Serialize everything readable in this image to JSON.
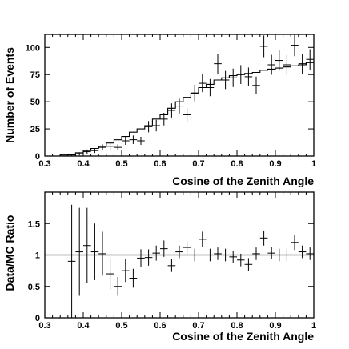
{
  "chart_data": [
    {
      "type": "scatter",
      "xlabel": "Cosine of the Zenith Angle",
      "ylabel": "Number of Events",
      "xlim": [
        0.3,
        1.0
      ],
      "ylim": [
        0,
        112
      ],
      "xticks": [
        "0.3",
        "0.4",
        "0.5",
        "0.6",
        "0.7",
        "0.8",
        "0.9",
        "1"
      ],
      "yticks": [
        "0",
        "25",
        "50",
        "75",
        "100"
      ],
      "ytick_values": [
        0,
        25,
        50,
        75,
        100
      ],
      "bin_width": 0.02,
      "x": [
        0.33,
        0.35,
        0.37,
        0.39,
        0.41,
        0.43,
        0.45,
        0.47,
        0.49,
        0.51,
        0.53,
        0.55,
        0.57,
        0.59,
        0.61,
        0.63,
        0.65,
        0.67,
        0.69,
        0.71,
        0.73,
        0.75,
        0.77,
        0.79,
        0.81,
        0.83,
        0.85,
        0.87,
        0.89,
        0.91,
        0.93,
        0.95,
        0.97,
        0.99
      ],
      "data_values": [
        0,
        0,
        1,
        2,
        4,
        5,
        8,
        9,
        8,
        14,
        15,
        14,
        27,
        28,
        34,
        42,
        46,
        38,
        58,
        67,
        63,
        85,
        70,
        72,
        75,
        73,
        65,
        101,
        84,
        88,
        84,
        102,
        85,
        89
      ],
      "data_errors": [
        0,
        0,
        1,
        1.4,
        2,
        2.2,
        2.8,
        3,
        2.8,
        3.7,
        3.9,
        3.7,
        5.2,
        5.3,
        5.8,
        6.5,
        6.8,
        6.2,
        7.6,
        8.2,
        7.9,
        9.2,
        8.4,
        8.5,
        8.7,
        8.5,
        8.1,
        10,
        9.2,
        9.4,
        9.2,
        10.1,
        9.2,
        9.4
      ],
      "mc_values": [
        0,
        1,
        1.5,
        3,
        5,
        7,
        9,
        12,
        15,
        18,
        22,
        25,
        28,
        34,
        38,
        44,
        50,
        54,
        58,
        63,
        66,
        70,
        72,
        74,
        75,
        76,
        77,
        79,
        80,
        81,
        82,
        83,
        84,
        86
      ],
      "series": [
        {
          "values_key": "data_values",
          "style": "crosses with error bars"
        },
        {
          "values_key": "mc_values",
          "style": "step histogram"
        }
      ]
    },
    {
      "type": "scatter",
      "xlabel": "Cosine of the Zenith Angle",
      "ylabel": "Data/MC Ratio",
      "xlim": [
        0.3,
        1.0
      ],
      "ylim": [
        0,
        2
      ],
      "xticks": [
        "0.3",
        "0.4",
        "0.5",
        "0.6",
        "0.7",
        "0.8",
        "0.9",
        "1"
      ],
      "yticks": [
        "0",
        "0.5",
        "1",
        "1.5"
      ],
      "ytick_values": [
        0,
        0.5,
        1,
        1.5
      ],
      "reference_line": 1,
      "x": [
        0.37,
        0.39,
        0.41,
        0.43,
        0.45,
        0.47,
        0.49,
        0.51,
        0.53,
        0.55,
        0.57,
        0.59,
        0.61,
        0.63,
        0.65,
        0.67,
        0.69,
        0.71,
        0.73,
        0.75,
        0.77,
        0.79,
        0.81,
        0.83,
        0.85,
        0.87,
        0.89,
        0.91,
        0.93,
        0.95,
        0.97,
        0.99
      ],
      "values": [
        0.9,
        1.05,
        1.15,
        1.05,
        1.02,
        0.7,
        0.5,
        0.75,
        0.63,
        0.95,
        0.96,
        1.03,
        1.1,
        0.83,
        1.05,
        1.12,
        1.0,
        1.25,
        1.0,
        1.02,
        1.0,
        0.97,
        0.92,
        0.85,
        1.02,
        1.27,
        1.03,
        1.0,
        1.0,
        1.2,
        1.05,
        1.02
      ],
      "errors": [
        0.9,
        0.7,
        0.6,
        0.45,
        0.35,
        0.25,
        0.15,
        0.18,
        0.15,
        0.14,
        0.13,
        0.12,
        0.13,
        0.1,
        0.1,
        0.1,
        0.1,
        0.12,
        0.1,
        0.1,
        0.1,
        0.1,
        0.1,
        0.1,
        0.1,
        0.12,
        0.1,
        0.1,
        0.1,
        0.12,
        0.1,
        0.1
      ]
    }
  ]
}
